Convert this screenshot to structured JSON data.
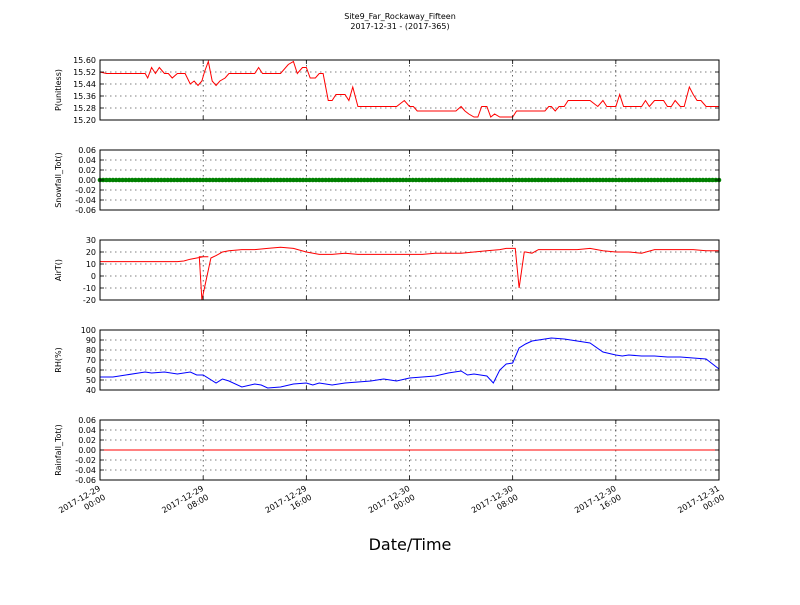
{
  "title": "Site9_Far_Rockaway_Fifteen",
  "subtitle": "2017-12-31 - (2017-365)",
  "xlabel": "Date/Time",
  "x_ticks": [
    {
      "line1": "2017-12-29",
      "line2": "00:00"
    },
    {
      "line1": "2017-12-29",
      "line2": "08:00"
    },
    {
      "line1": "2017-12-29",
      "line2": "16:00"
    },
    {
      "line1": "2017-12-30",
      "line2": "00:00"
    },
    {
      "line1": "2017-12-30",
      "line2": "08:00"
    },
    {
      "line1": "2017-12-30",
      "line2": "16:00"
    },
    {
      "line1": "2017-12-31",
      "line2": "00:00"
    }
  ],
  "x_tick_hours": [
    0,
    8,
    16,
    24,
    32,
    40,
    48
  ],
  "chart_data": [
    {
      "type": "line",
      "ylabel": "P(unitless)",
      "color": "#ff0000",
      "ylim": [
        15.2,
        15.6
      ],
      "yticks": [
        "15.60",
        "15.52",
        "15.44",
        "15.36",
        "15.28",
        "15.20"
      ],
      "ytick_values": [
        15.6,
        15.52,
        15.44,
        15.36,
        15.28,
        15.2
      ],
      "x_hours": [
        0,
        0.5,
        1,
        2,
        3,
        3.5,
        3.7,
        4,
        4.3,
        4.6,
        5,
        5.3,
        5.6,
        6,
        6.3,
        6.6,
        7,
        7.3,
        7.6,
        7.9,
        8.1,
        8.4,
        8.7,
        9,
        9.3,
        9.7,
        10,
        11,
        11.5,
        11.8,
        12,
        12.3,
        12.6,
        13,
        14,
        14.6,
        15,
        15.3,
        15.7,
        16,
        16.3,
        16.7,
        17,
        17.3,
        17.7,
        18,
        18.3,
        18.6,
        19,
        19.3,
        19.6,
        20,
        21,
        21.3,
        21.7,
        22,
        23,
        23.6,
        24,
        24.3,
        24.6,
        25,
        26,
        27,
        27.6,
        28,
        28.3,
        28.6,
        29,
        29.3,
        29.6,
        30,
        30.3,
        30.6,
        31,
        31.3,
        31.6,
        32,
        32.3,
        33,
        34,
        34.5,
        34.8,
        35,
        35.3,
        35.6,
        36,
        36.3,
        36.6,
        37,
        38,
        38.6,
        39,
        39.3,
        39.6,
        40,
        40.3,
        40.6,
        41,
        41.6,
        42,
        42.3,
        42.6,
        43,
        43.3,
        43.7,
        44,
        44.3,
        44.6,
        45,
        45.3,
        45.7,
        46,
        46.3,
        46.6,
        47,
        47.3,
        48
      ],
      "y": [
        15.52,
        15.51,
        15.51,
        15.51,
        15.51,
        15.51,
        15.48,
        15.55,
        15.51,
        15.55,
        15.51,
        15.51,
        15.48,
        15.51,
        15.51,
        15.51,
        15.44,
        15.46,
        15.43,
        15.46,
        15.52,
        15.59,
        15.46,
        15.43,
        15.46,
        15.48,
        15.51,
        15.51,
        15.51,
        15.51,
        15.51,
        15.55,
        15.51,
        15.51,
        15.51,
        15.57,
        15.59,
        15.51,
        15.55,
        15.55,
        15.48,
        15.48,
        15.51,
        15.51,
        15.33,
        15.33,
        15.37,
        15.37,
        15.37,
        15.33,
        15.42,
        15.29,
        15.29,
        15.29,
        15.29,
        15.29,
        15.29,
        15.33,
        15.29,
        15.29,
        15.26,
        15.26,
        15.26,
        15.26,
        15.26,
        15.29,
        15.26,
        15.24,
        15.22,
        15.22,
        15.29,
        15.29,
        15.22,
        15.24,
        15.22,
        15.22,
        15.22,
        15.22,
        15.26,
        15.26,
        15.26,
        15.26,
        15.29,
        15.29,
        15.26,
        15.29,
        15.29,
        15.33,
        15.33,
        15.33,
        15.33,
        15.29,
        15.33,
        15.29,
        15.29,
        15.29,
        15.37,
        15.29,
        15.29,
        15.29,
        15.29,
        15.33,
        15.29,
        15.33,
        15.33,
        15.33,
        15.29,
        15.29,
        15.33,
        15.29,
        15.29,
        15.42,
        15.37,
        15.33,
        15.33,
        15.29,
        15.29,
        15.29
      ]
    },
    {
      "type": "scatter",
      "ylabel": "Snowfall_Tot()",
      "color": "#008000",
      "ylim": [
        -0.06,
        0.06
      ],
      "yticks": [
        "0.06",
        "0.04",
        "0.02",
        "0.00",
        "-0.02",
        "-0.04",
        "-0.06"
      ],
      "ytick_values": [
        0.06,
        0.04,
        0.02,
        0.0,
        -0.02,
        -0.04,
        -0.06
      ],
      "x_start": 0,
      "x_end": 48,
      "x_step": 0.25,
      "constant_value": 0.0
    },
    {
      "type": "line",
      "ylabel": "AirT()",
      "color": "#ff0000",
      "ylim": [
        -20,
        30
      ],
      "yticks": [
        "30",
        "20",
        "10",
        "0",
        "-10",
        "-20"
      ],
      "ytick_values": [
        30,
        20,
        10,
        0,
        -10,
        -20
      ],
      "x_hours": [
        0,
        1,
        2,
        3,
        4,
        5,
        6,
        6.5,
        7,
        8,
        8.4,
        7.7,
        7.9,
        8.6,
        9,
        9.5,
        10,
        11,
        12,
        13,
        14,
        15,
        16,
        17,
        17.5,
        18,
        19,
        20,
        21,
        22,
        23,
        24,
        25,
        26,
        27,
        28,
        29,
        30,
        31,
        31.5,
        32,
        32.2,
        32.5,
        32.9,
        33,
        33.5,
        34,
        35,
        36,
        37,
        38,
        39,
        40,
        41,
        42,
        43,
        44,
        45,
        46,
        47,
        48
      ],
      "y": [
        12,
        12,
        12,
        12,
        12,
        12,
        12,
        12.5,
        14,
        16,
        16,
        16,
        -20,
        15,
        17,
        20,
        21,
        22,
        22,
        23,
        24,
        23,
        20,
        18,
        18,
        18,
        19,
        18,
        18,
        18,
        18,
        18,
        18,
        19,
        19,
        19,
        20,
        21,
        22,
        23,
        23,
        23,
        -10,
        20,
        20,
        19,
        22,
        22,
        22,
        22,
        23,
        21,
        20,
        20,
        19,
        22,
        22,
        22,
        22,
        21,
        21
      ]
    },
    {
      "type": "line",
      "ylabel": "RH(%)",
      "color": "#0000ff",
      "ylim": [
        40,
        100
      ],
      "yticks": [
        "100",
        "90",
        "80",
        "70",
        "60",
        "50",
        "40"
      ],
      "ytick_values": [
        100,
        90,
        80,
        70,
        60,
        50,
        40
      ],
      "x_hours": [
        0,
        1,
        2,
        3,
        3.5,
        4,
        5,
        6,
        7,
        7.5,
        8,
        9,
        9.5,
        10,
        11,
        12,
        12.5,
        13,
        14,
        15,
        16,
        16.5,
        17,
        18,
        19,
        20,
        21,
        22,
        23,
        24,
        25,
        26,
        27,
        28,
        28.5,
        29,
        30,
        30.5,
        31,
        31.5,
        32,
        32.5,
        33,
        33.5,
        34,
        35,
        36,
        36.5,
        37,
        38,
        39,
        40,
        40.5,
        41,
        42,
        43,
        44,
        45,
        46,
        47,
        48
      ],
      "y": [
        53,
        53,
        55,
        57,
        58,
        57,
        58,
        56,
        58,
        55,
        55,
        47,
        51,
        49,
        43,
        46,
        45,
        42,
        43,
        46,
        47,
        45,
        47,
        45,
        47,
        48,
        49,
        51,
        49,
        52,
        53,
        54,
        57,
        59,
        55,
        56,
        54,
        47,
        60,
        66,
        67,
        82,
        86,
        89,
        90,
        92,
        91,
        90,
        89,
        87,
        78,
        75,
        74,
        75,
        74,
        74,
        73,
        73,
        72,
        71,
        61
      ]
    },
    {
      "type": "line",
      "ylabel": "Rainfall_Tot()",
      "color": "#ff0000",
      "ylim": [
        -0.06,
        0.06
      ],
      "yticks": [
        "0.06",
        "0.04",
        "0.02",
        "0.00",
        "-0.02",
        "-0.04",
        "-0.06"
      ],
      "ytick_values": [
        0.06,
        0.04,
        0.02,
        0.0,
        -0.02,
        -0.04,
        -0.06
      ],
      "x_hours": [
        0,
        48
      ],
      "y": [
        0.0,
        0.0
      ]
    }
  ]
}
